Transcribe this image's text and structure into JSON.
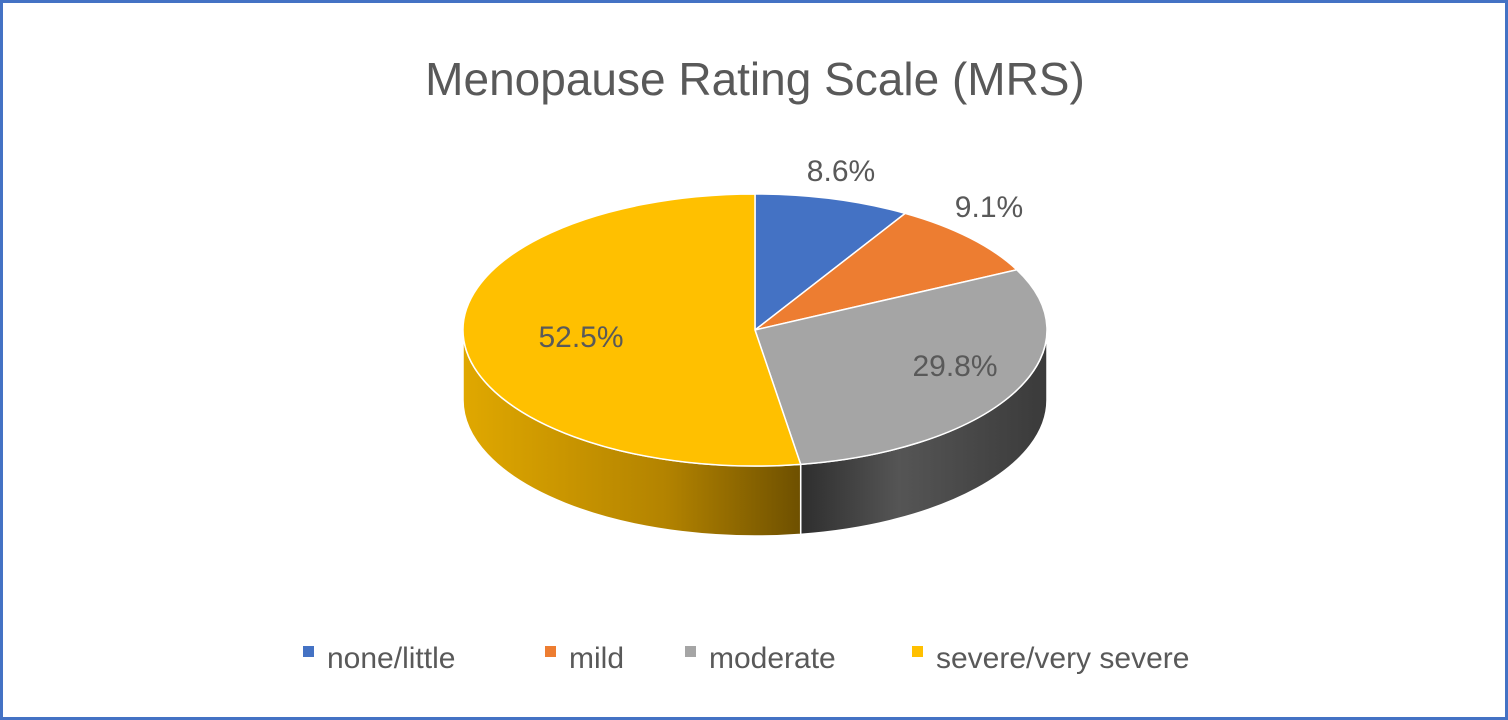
{
  "chart_data": {
    "type": "pie",
    "title": "Menopause Rating Scale (MRS)",
    "categories": [
      "none/little",
      "mild",
      "moderate",
      "severe/very severe"
    ],
    "values": [
      8.6,
      9.1,
      29.8,
      52.5
    ],
    "labels": [
      "8.6%",
      "9.1%",
      "29.8%",
      "52.5%"
    ],
    "colors": [
      "#4472C4",
      "#ED7D31",
      "#A5A5A5",
      "#FFC000"
    ],
    "legend_position": "bottom",
    "style": "3d"
  }
}
